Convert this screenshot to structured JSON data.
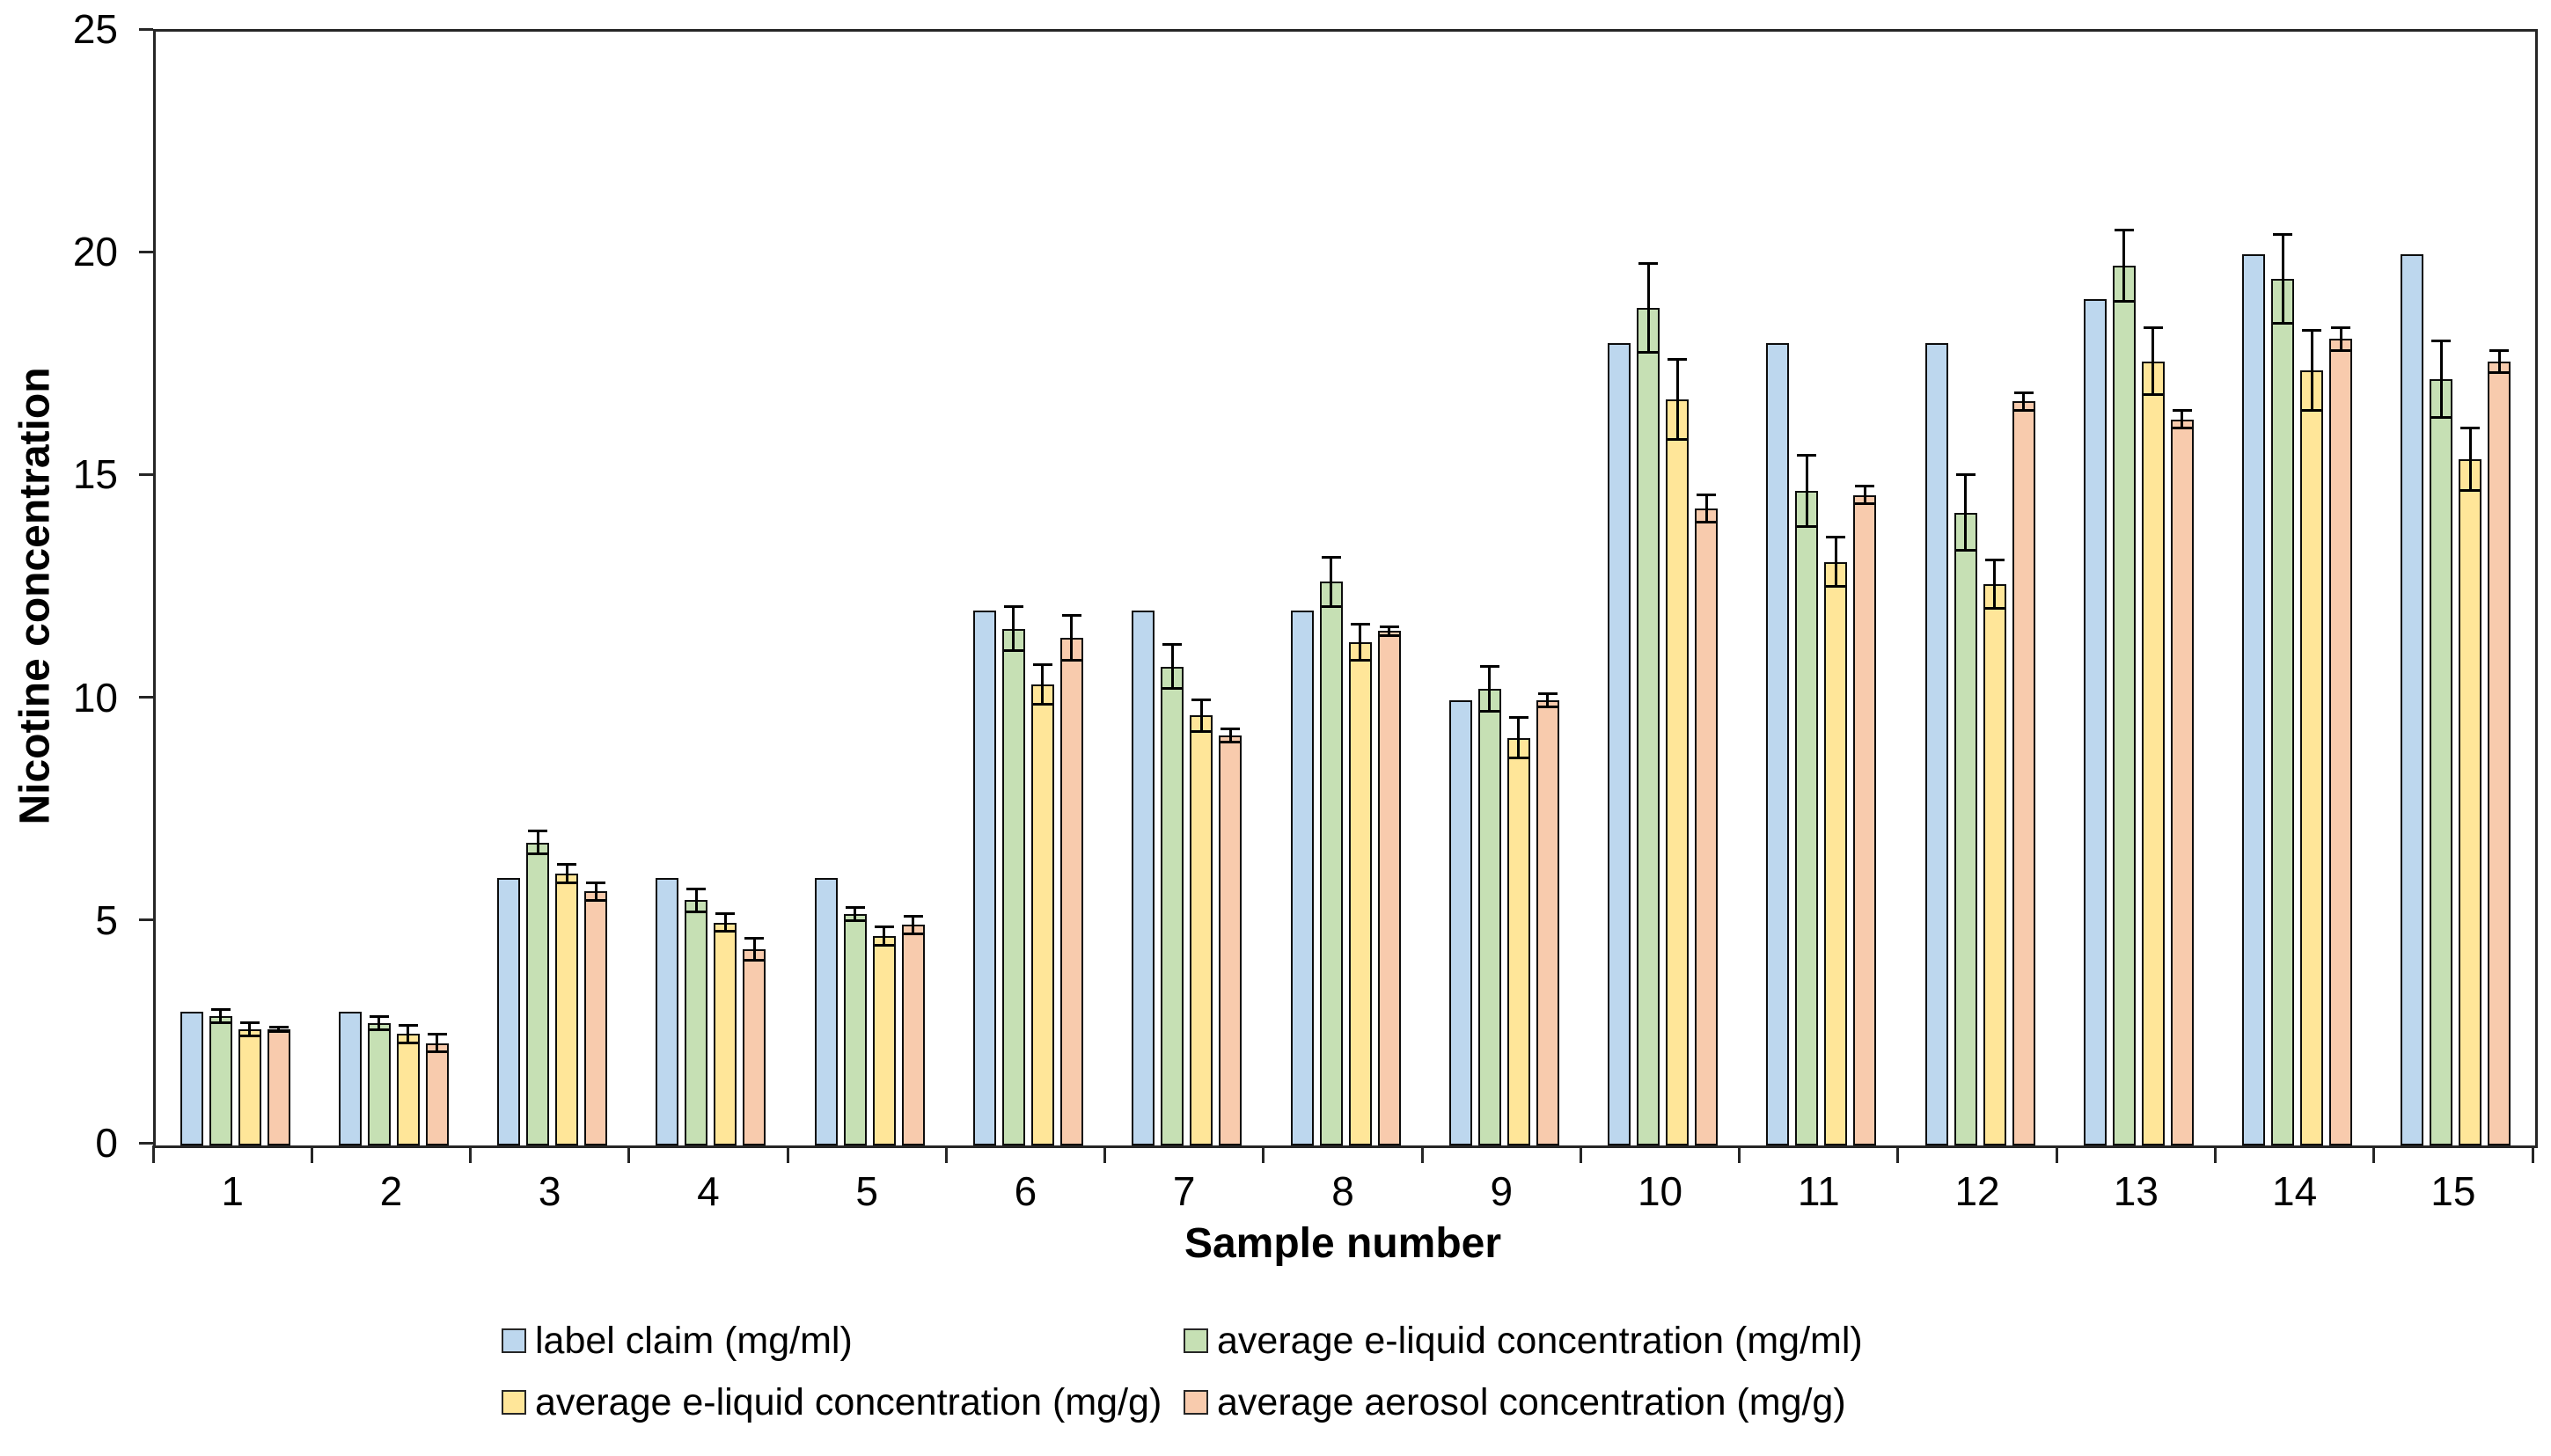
{
  "chart_data": {
    "type": "bar",
    "title": "",
    "xlabel": "Sample number",
    "ylabel": "Nicotine concentration",
    "categories": [
      "1",
      "2",
      "3",
      "4",
      "5",
      "6",
      "7",
      "8",
      "9",
      "10",
      "11",
      "12",
      "13",
      "14",
      "15"
    ],
    "ylim": [
      0,
      25
    ],
    "yticks": [
      0,
      5,
      10,
      15,
      20,
      25
    ],
    "grid": false,
    "legend_position": "bottom",
    "error_bars": true,
    "bar_outline_color": "#0d0d0d",
    "axis_color": "#262626",
    "series": [
      {
        "name": "label claim (mg/ml)",
        "color": "#BDD7EE",
        "values": [
          3,
          3,
          6,
          6,
          6,
          12,
          12,
          12,
          10,
          18,
          18,
          18,
          19,
          20,
          20
        ],
        "errors": [
          0,
          0,
          0,
          0,
          0,
          0,
          0,
          0,
          0,
          0,
          0,
          0,
          0,
          0,
          0
        ]
      },
      {
        "name": "average e-liquid concentration (mg/ml)",
        "color": "#C6E0B4",
        "values": [
          2.9,
          2.75,
          6.8,
          5.5,
          5.2,
          11.6,
          10.75,
          12.65,
          10.25,
          18.8,
          14.7,
          14.2,
          19.75,
          19.45,
          17.2
        ],
        "errors": [
          0.15,
          0.15,
          0.25,
          0.25,
          0.15,
          0.5,
          0.5,
          0.55,
          0.5,
          1.0,
          0.8,
          0.85,
          0.8,
          1.0,
          0.85
        ]
      },
      {
        "name": "average e-liquid concentration (mg/g)",
        "color": "#FFE699",
        "values": [
          2.6,
          2.5,
          6.1,
          5.0,
          4.7,
          10.35,
          9.65,
          11.3,
          9.15,
          16.75,
          13.1,
          12.6,
          17.6,
          17.4,
          15.4
        ],
        "errors": [
          0.15,
          0.2,
          0.2,
          0.2,
          0.2,
          0.45,
          0.35,
          0.4,
          0.45,
          0.9,
          0.55,
          0.55,
          0.75,
          0.9,
          0.7
        ]
      },
      {
        "name": "average aerosol concentration (mg/g)",
        "color": "#F8CBAD",
        "values": [
          2.6,
          2.3,
          5.7,
          4.4,
          4.95,
          11.4,
          9.2,
          11.55,
          10.0,
          14.3,
          14.6,
          16.7,
          16.3,
          18.1,
          17.6
        ],
        "errors": [
          0.05,
          0.2,
          0.2,
          0.25,
          0.2,
          0.5,
          0.15,
          0.1,
          0.15,
          0.3,
          0.2,
          0.2,
          0.2,
          0.25,
          0.25
        ]
      }
    ]
  }
}
